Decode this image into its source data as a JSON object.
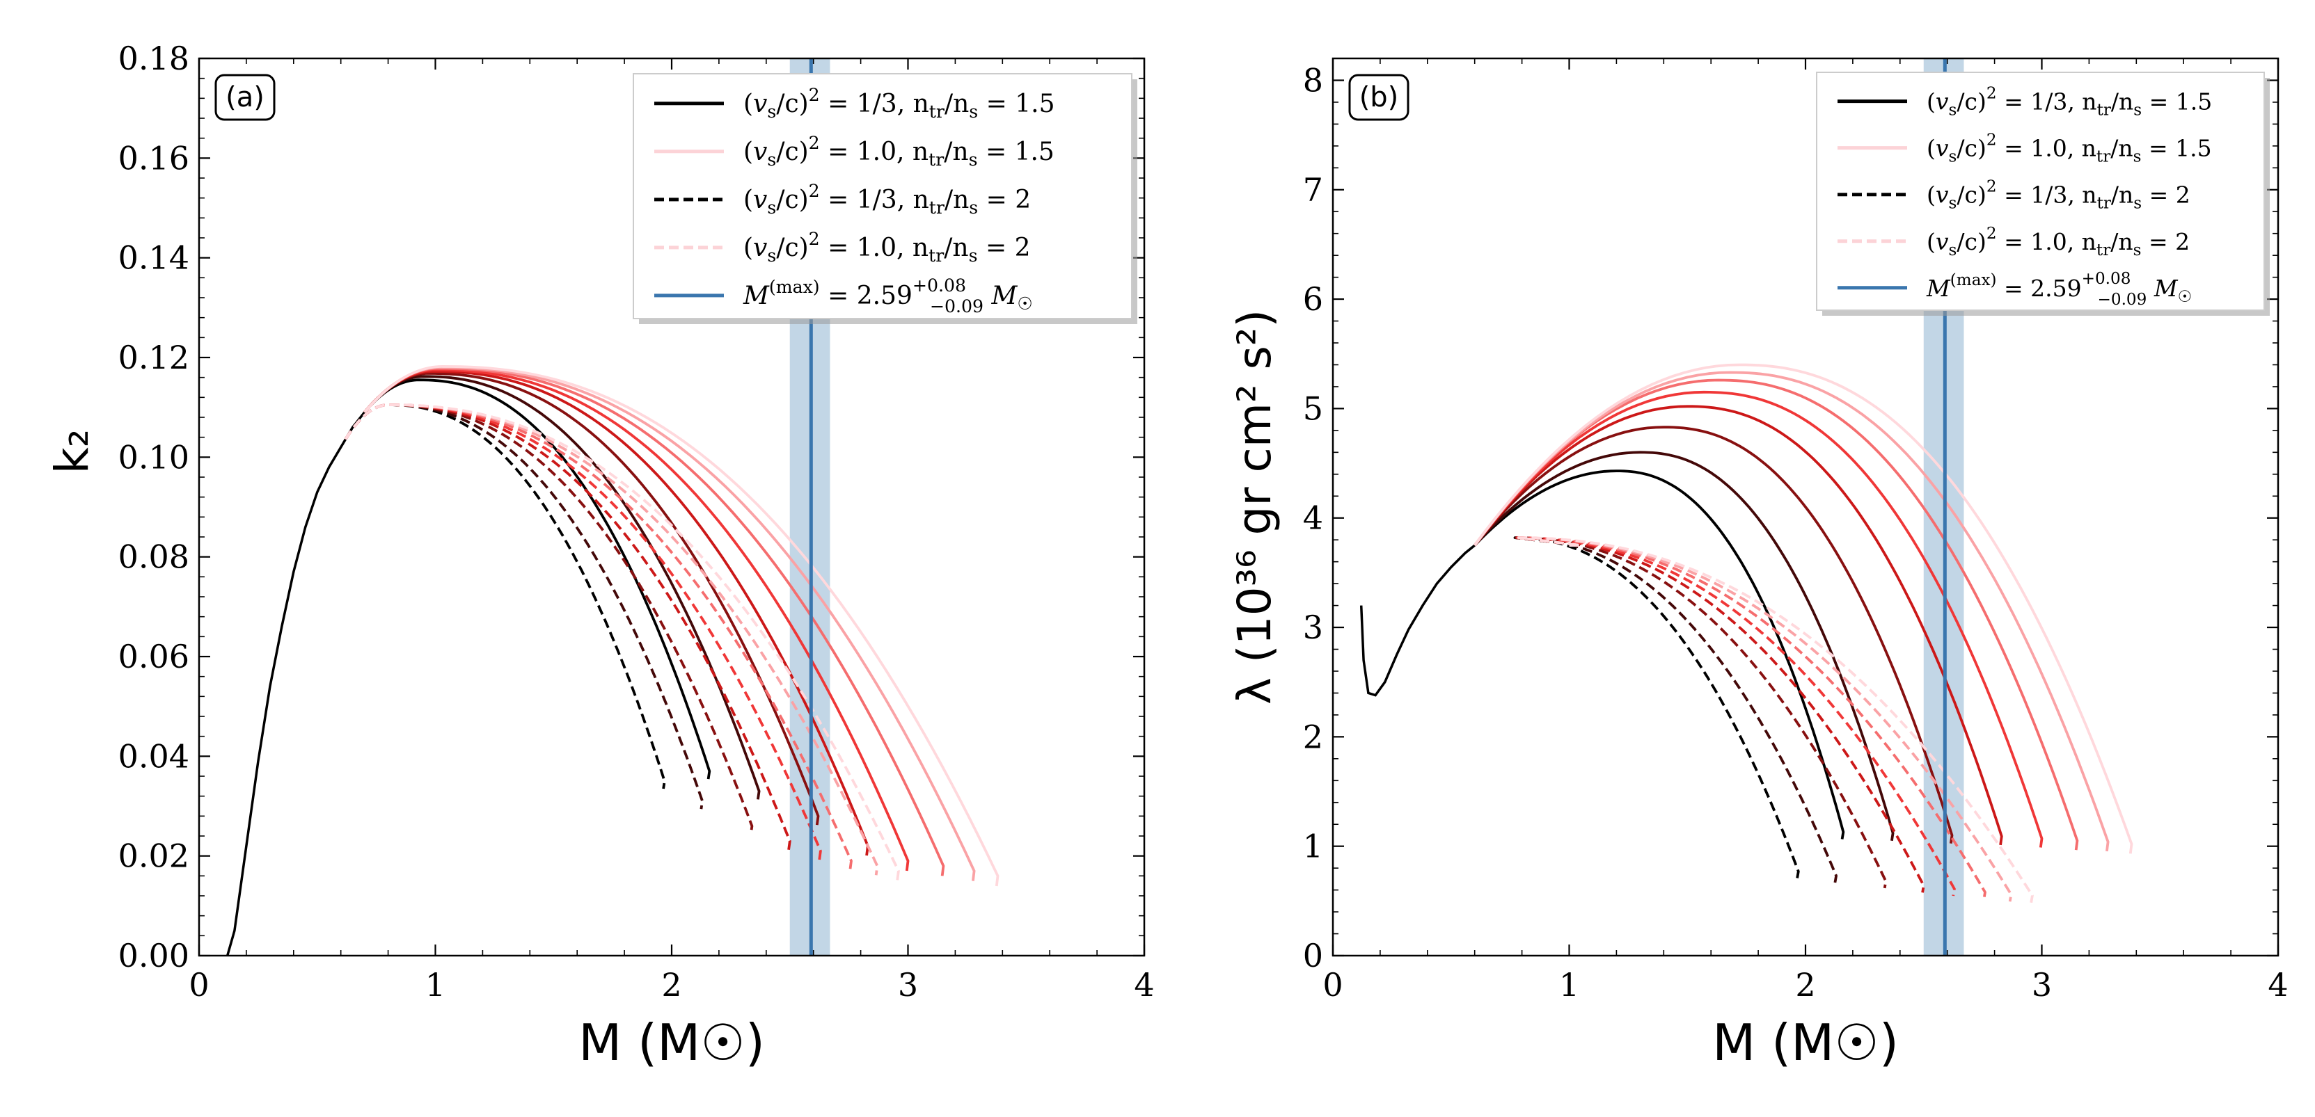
{
  "colors": {
    "background": "#ffffff",
    "axes": "#000000",
    "mmax_line": "#3a76ae",
    "mmax_band": "#c2d6e6",
    "curve_dark_start": "#000000",
    "curve_mid": "#ee1c1c",
    "curve_light_end": "#ffd8dc"
  },
  "shared": {
    "legend": [
      {
        "label": "(v_s/c)^2 = 1/3,  n_tr/n_s = 1.5",
        "style": "solid",
        "color": "#000000"
      },
      {
        "label": "(v_s/c)^2 = 1.0,  n_tr/n_s = 1.5",
        "style": "solid",
        "color": "#fcd3d7"
      },
      {
        "label": "(v_s/c)^2 = 1/3,  n_tr/n_s = 2",
        "style": "dashed",
        "color": "#000000"
      },
      {
        "label": "(v_s/c)^2 = 1.0,  n_tr/n_s = 2",
        "style": "dashed",
        "color": "#fcd3d7"
      },
      {
        "label": "M^(max) = 2.59 (+0.08 / −0.09) M☉",
        "style": "solid",
        "color": "#3a76ae"
      }
    ],
    "mmax": {
      "value": 2.59,
      "err_plus": 0.08,
      "err_minus": 0.09
    }
  },
  "chart_data": [
    {
      "panel": "(a)",
      "type": "line",
      "xlabel": "M (M☉)",
      "ylabel": "k₂",
      "xlim": [
        0,
        4
      ],
      "ylim": [
        0,
        0.18
      ],
      "xticks": [
        "0",
        "1",
        "2",
        "3",
        "4"
      ],
      "yticks": [
        "0.00",
        "0.02",
        "0.04",
        "0.06",
        "0.08",
        "0.10",
        "0.12",
        "0.14",
        "0.16",
        "0.18"
      ],
      "legend_position": "top-right",
      "grid": false,
      "common_branch": {
        "x": [
          0.12,
          0.15,
          0.2,
          0.25,
          0.3,
          0.35,
          0.4,
          0.45,
          0.5,
          0.55,
          0.6,
          0.65,
          0.7
        ],
        "y": [
          0.0,
          0.005,
          0.022,
          0.039,
          0.054,
          0.066,
          0.077,
          0.086,
          0.093,
          0.098,
          0.102,
          0.106,
          0.109
        ]
      },
      "families": [
        {
          "name": "n_tr/n_s = 1.5",
          "style": "solid",
          "split_at": 0.7,
          "curves": [
            {
              "peak_x": 0.93,
              "peak_y": 0.1155,
              "end_x": 2.16,
              "end_y": 0.037
            },
            {
              "peak_x": 0.95,
              "peak_y": 0.1162,
              "end_x": 2.37,
              "end_y": 0.033
            },
            {
              "peak_x": 0.97,
              "peak_y": 0.1168,
              "end_x": 2.62,
              "end_y": 0.028
            },
            {
              "peak_x": 0.99,
              "peak_y": 0.1172,
              "end_x": 2.83,
              "end_y": 0.022
            },
            {
              "peak_x": 1.0,
              "peak_y": 0.1175,
              "end_x": 3.0,
              "end_y": 0.019
            },
            {
              "peak_x": 1.01,
              "peak_y": 0.1178,
              "end_x": 3.15,
              "end_y": 0.018
            },
            {
              "peak_x": 1.02,
              "peak_y": 0.118,
              "end_x": 3.28,
              "end_y": 0.017
            },
            {
              "peak_x": 1.03,
              "peak_y": 0.1182,
              "end_x": 3.38,
              "end_y": 0.016
            }
          ]
        },
        {
          "name": "n_tr/n_s = 2",
          "style": "dashed",
          "split_at": 0.62,
          "curves": [
            {
              "peak_x": 0.8,
              "peak_y": 0.1105,
              "end_x": 1.97,
              "end_y": 0.035
            },
            {
              "peak_x": 0.8,
              "peak_y": 0.1105,
              "end_x": 2.13,
              "end_y": 0.031
            },
            {
              "peak_x": 0.8,
              "peak_y": 0.1105,
              "end_x": 2.34,
              "end_y": 0.026
            },
            {
              "peak_x": 0.8,
              "peak_y": 0.1105,
              "end_x": 2.5,
              "end_y": 0.023
            },
            {
              "peak_x": 0.8,
              "peak_y": 0.1105,
              "end_x": 2.63,
              "end_y": 0.021
            },
            {
              "peak_x": 0.8,
              "peak_y": 0.1105,
              "end_x": 2.76,
              "end_y": 0.019
            },
            {
              "peak_x": 0.8,
              "peak_y": 0.1105,
              "end_x": 2.87,
              "end_y": 0.018
            },
            {
              "peak_x": 0.8,
              "peak_y": 0.1105,
              "end_x": 2.96,
              "end_y": 0.017
            }
          ]
        }
      ]
    },
    {
      "panel": "(b)",
      "type": "line",
      "xlabel": "M (M☉)",
      "ylabel": "λ (10³⁶ gr cm² s²)",
      "xlim": [
        0,
        4
      ],
      "ylim": [
        0,
        8.2
      ],
      "xticks": [
        "0",
        "1",
        "2",
        "3",
        "4"
      ],
      "yticks": [
        "0",
        "1",
        "2",
        "3",
        "4",
        "5",
        "6",
        "7",
        "8"
      ],
      "legend_position": "top-right",
      "grid": false,
      "common_branch": {
        "x": [
          0.12,
          0.13,
          0.15,
          0.18,
          0.22,
          0.27,
          0.32,
          0.38,
          0.44,
          0.5,
          0.56,
          0.6
        ],
        "y": [
          3.2,
          2.7,
          2.4,
          2.38,
          2.5,
          2.75,
          2.98,
          3.2,
          3.4,
          3.55,
          3.68,
          3.75
        ]
      },
      "families": [
        {
          "name": "n_tr/n_s = 1.5",
          "style": "solid",
          "split_at": 0.6,
          "curves": [
            {
              "peak_x": 1.2,
              "peak_y": 4.43,
              "end_x": 2.16,
              "end_y": 1.13
            },
            {
              "peak_x": 1.3,
              "peak_y": 4.6,
              "end_x": 2.37,
              "end_y": 1.12
            },
            {
              "peak_x": 1.4,
              "peak_y": 4.83,
              "end_x": 2.62,
              "end_y": 1.1
            },
            {
              "peak_x": 1.5,
              "peak_y": 5.02,
              "end_x": 2.83,
              "end_y": 1.09
            },
            {
              "peak_x": 1.57,
              "peak_y": 5.15,
              "end_x": 3.0,
              "end_y": 1.07
            },
            {
              "peak_x": 1.63,
              "peak_y": 5.26,
              "end_x": 3.15,
              "end_y": 1.05
            },
            {
              "peak_x": 1.68,
              "peak_y": 5.33,
              "end_x": 3.28,
              "end_y": 1.04
            },
            {
              "peak_x": 1.72,
              "peak_y": 5.4,
              "end_x": 3.38,
              "end_y": 1.02
            }
          ]
        },
        {
          "name": "n_tr/n_s = 2",
          "style": "dashed",
          "split_at": 1.0,
          "curves": [
            {
              "peak_x": 0.75,
              "peak_y": 3.82,
              "end_x": 1.97,
              "end_y": 0.77
            },
            {
              "peak_x": 0.75,
              "peak_y": 3.82,
              "end_x": 2.13,
              "end_y": 0.73
            },
            {
              "peak_x": 0.75,
              "peak_y": 3.82,
              "end_x": 2.34,
              "end_y": 0.68
            },
            {
              "peak_x": 0.75,
              "peak_y": 3.82,
              "end_x": 2.5,
              "end_y": 0.64
            },
            {
              "peak_x": 0.75,
              "peak_y": 3.82,
              "end_x": 2.63,
              "end_y": 0.61
            },
            {
              "peak_x": 0.75,
              "peak_y": 3.82,
              "end_x": 2.76,
              "end_y": 0.58
            },
            {
              "peak_x": 0.75,
              "peak_y": 3.82,
              "end_x": 2.87,
              "end_y": 0.56
            },
            {
              "peak_x": 0.75,
              "peak_y": 3.82,
              "end_x": 2.96,
              "end_y": 0.55
            }
          ]
        }
      ]
    }
  ]
}
